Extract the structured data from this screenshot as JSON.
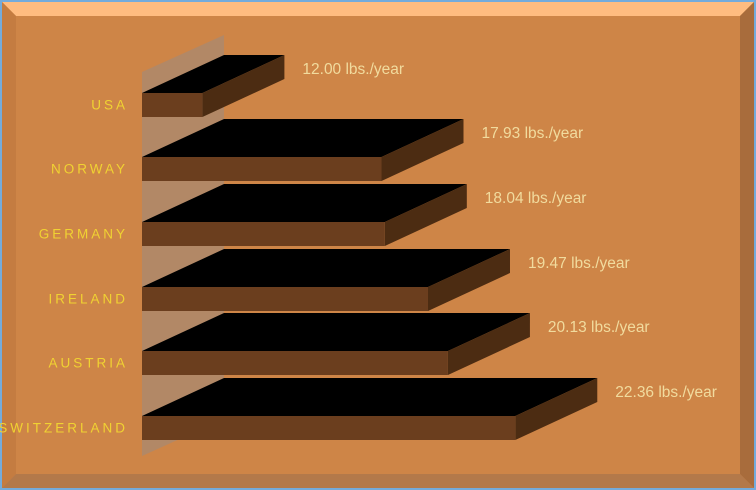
{
  "window": {
    "border_color": "#74ABDB"
  },
  "frame": {
    "background": "#CE8547",
    "bevel_top": "#FFBC80",
    "bevel_left": "#C47C41",
    "bevel_right": "#A86C3C",
    "bevel_bottom": "#B3794A"
  },
  "colors": {
    "bar_front": "#6B3E1E",
    "bar_dark": "#4C2C12",
    "wall": "#B28866",
    "category_label": "#F0D232",
    "value_label": "#F1DB9E"
  },
  "chart_data": {
    "type": "bar",
    "orientation": "horizontal",
    "style": "3d-oblique",
    "title": "",
    "xlabel": "",
    "ylabel": "",
    "categories": [
      "USA",
      "NORWAY",
      "GERMANY",
      "IRELAND",
      "AUSTRIA",
      "SWITZERLAND"
    ],
    "values": [
      12.0,
      17.93,
      18.04,
      19.47,
      20.13,
      22.36
    ],
    "data_labels": [
      "12.00 lbs./year",
      "17.93 lbs./year",
      "18.04 lbs./year",
      "19.47 lbs./year",
      "20.13 lbs./year",
      "22.36 lbs./year"
    ],
    "unit": "lbs./year",
    "value_axis_min_implied": 10,
    "legend": "none",
    "grid": false
  }
}
